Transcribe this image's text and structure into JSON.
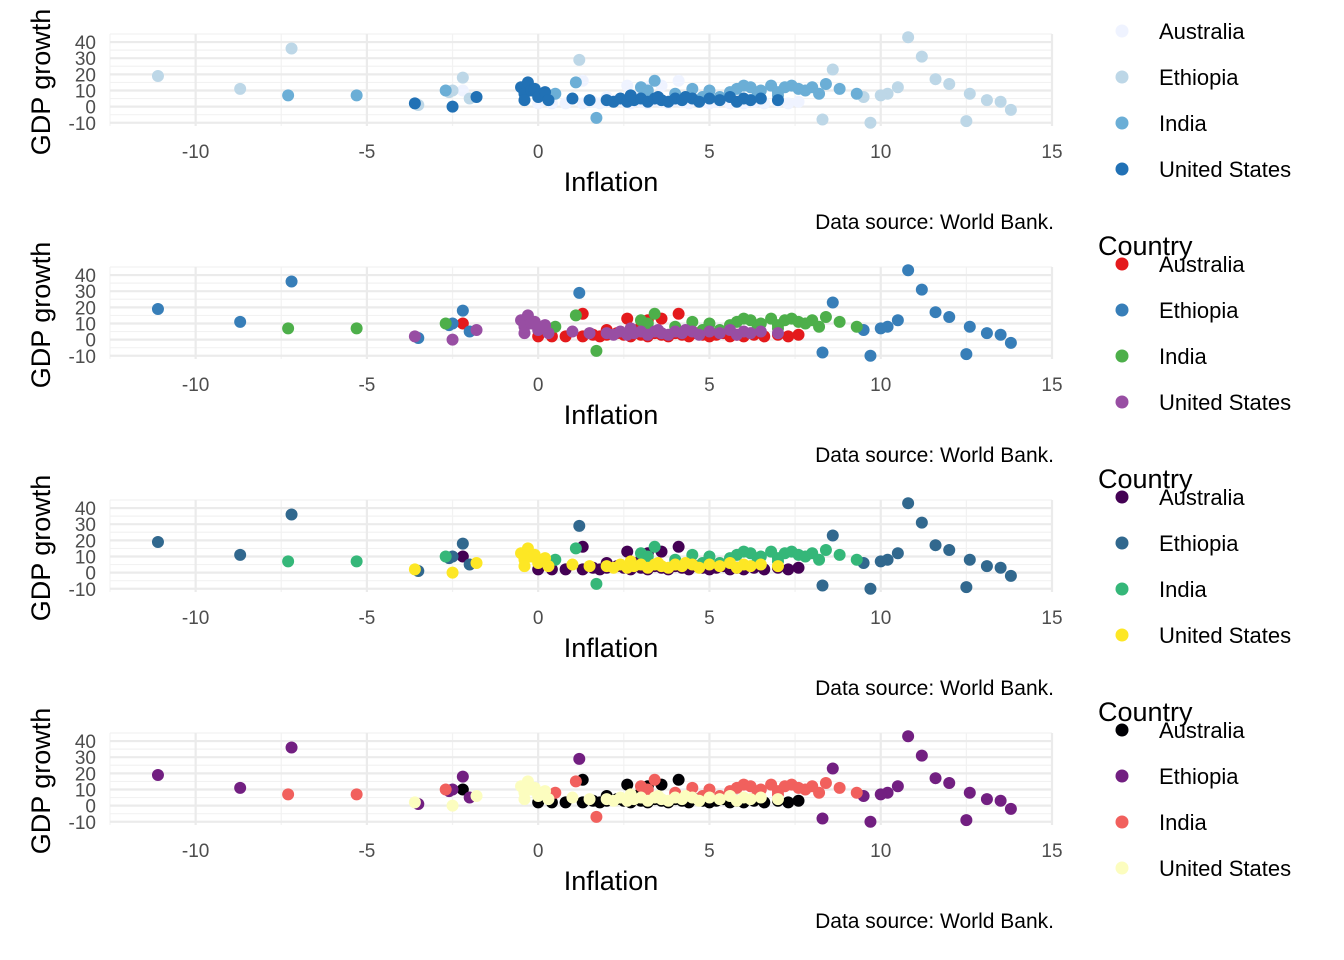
{
  "chart_data": [
    {
      "type": "scatter",
      "palette_name": "Blues",
      "xlabel": "Inflation",
      "ylabel": "GDP growth",
      "caption": "Data source: World Bank.",
      "xlim": [
        -12.5,
        15
      ],
      "ylim": [
        -12,
        45
      ],
      "xticks": [
        -10,
        -5,
        0,
        5,
        10,
        15
      ],
      "yticks": [
        -10,
        0,
        10,
        20,
        30,
        40
      ],
      "grid": true,
      "legend": {
        "title": "",
        "position": "right"
      },
      "series": [
        {
          "name": "Australia",
          "color": "#eff3ff"
        },
        {
          "name": "Ethiopia",
          "color": "#bdd7e7"
        },
        {
          "name": "India",
          "color": "#6baed6"
        },
        {
          "name": "United States",
          "color": "#2171b5"
        }
      ]
    },
    {
      "type": "scatter",
      "palette_name": "Set1",
      "xlabel": "Inflation",
      "ylabel": "GDP growth",
      "caption": "Data source: World Bank.",
      "xlim": [
        -12.5,
        15
      ],
      "ylim": [
        -12,
        45
      ],
      "xticks": [
        -10,
        -5,
        0,
        5,
        10,
        15
      ],
      "yticks": [
        -10,
        0,
        10,
        20,
        30,
        40
      ],
      "grid": true,
      "legend": {
        "title": "Country",
        "position": "right"
      },
      "series": [
        {
          "name": "Australia",
          "color": "#e41a1c"
        },
        {
          "name": "Ethiopia",
          "color": "#377eb8"
        },
        {
          "name": "India",
          "color": "#4daf4a"
        },
        {
          "name": "United States",
          "color": "#984ea3"
        }
      ]
    },
    {
      "type": "scatter",
      "palette_name": "viridis",
      "xlabel": "Inflation",
      "ylabel": "GDP growth",
      "caption": "Data source: World Bank.",
      "xlim": [
        -12.5,
        15
      ],
      "ylim": [
        -12,
        45
      ],
      "xticks": [
        -10,
        -5,
        0,
        5,
        10,
        15
      ],
      "yticks": [
        -10,
        0,
        10,
        20,
        30,
        40
      ],
      "grid": true,
      "legend": {
        "title": "Country",
        "position": "right"
      },
      "series": [
        {
          "name": "Australia",
          "color": "#440154"
        },
        {
          "name": "Ethiopia",
          "color": "#31688e"
        },
        {
          "name": "India",
          "color": "#35b779"
        },
        {
          "name": "United States",
          "color": "#fde725"
        }
      ]
    },
    {
      "type": "scatter",
      "palette_name": "magma",
      "xlabel": "Inflation",
      "ylabel": "GDP growth",
      "caption": "Data source: World Bank.",
      "xlim": [
        -12.5,
        15
      ],
      "ylim": [
        -12,
        45
      ],
      "xticks": [
        -10,
        -5,
        0,
        5,
        10,
        15
      ],
      "yticks": [
        -10,
        0,
        10,
        20,
        30,
        40
      ],
      "grid": true,
      "legend": {
        "title": "Country",
        "position": "right"
      },
      "series": [
        {
          "name": "Australia",
          "color": "#000004"
        },
        {
          "name": "Ethiopia",
          "color": "#721f81"
        },
        {
          "name": "India",
          "color": "#f1605d"
        },
        {
          "name": "United States",
          "color": "#fcfdbf"
        }
      ]
    }
  ],
  "points": {
    "Australia": [
      [
        0,
        2
      ],
      [
        0.4,
        2
      ],
      [
        0.8,
        2
      ],
      [
        1.3,
        2
      ],
      [
        1.6,
        3
      ],
      [
        1.8,
        2
      ],
      [
        2.0,
        3
      ],
      [
        2.3,
        4
      ],
      [
        2.5,
        3
      ],
      [
        2.7,
        2
      ],
      [
        2.9,
        4
      ],
      [
        3.0,
        3
      ],
      [
        3.2,
        2
      ],
      [
        3.4,
        4
      ],
      [
        3.6,
        3
      ],
      [
        3.8,
        2
      ],
      [
        4.0,
        4
      ],
      [
        4.2,
        3
      ],
      [
        4.4,
        2
      ],
      [
        4.6,
        4
      ],
      [
        4.8,
        3
      ],
      [
        5.0,
        2
      ],
      [
        5.2,
        3
      ],
      [
        5.4,
        4
      ],
      [
        5.6,
        2
      ],
      [
        5.8,
        3
      ],
      [
        6.0,
        2
      ],
      [
        6.3,
        3
      ],
      [
        6.6,
        2
      ],
      [
        7.0,
        3
      ],
      [
        7.3,
        2
      ],
      [
        7.6,
        3
      ],
      [
        -2.2,
        10
      ],
      [
        1.3,
        16
      ],
      [
        2.6,
        13
      ],
      [
        3.2,
        12
      ],
      [
        3.6,
        13
      ],
      [
        4.1,
        16
      ],
      [
        3.0,
        8
      ],
      [
        2.0,
        6
      ]
    ],
    "Ethiopia": [
      [
        -11.1,
        19
      ],
      [
        -8.7,
        11
      ],
      [
        -7.2,
        36
      ],
      [
        -3.5,
        1
      ],
      [
        -2.6,
        9
      ],
      [
        -2.2,
        18
      ],
      [
        1.2,
        29
      ],
      [
        8.6,
        23
      ],
      [
        9.5,
        6
      ],
      [
        10.2,
        8
      ],
      [
        10.5,
        12
      ],
      [
        10.8,
        43
      ],
      [
        11.2,
        31
      ],
      [
        11.6,
        17
      ],
      [
        12.0,
        14
      ],
      [
        12.5,
        -9
      ],
      [
        12.6,
        8
      ],
      [
        13.1,
        4
      ],
      [
        13.5,
        3
      ],
      [
        13.8,
        -2
      ],
      [
        8.3,
        -8
      ],
      [
        9.7,
        -10
      ],
      [
        10.0,
        7
      ],
      [
        -2.5,
        10
      ],
      [
        -2.0,
        5
      ]
    ],
    "India": [
      [
        -7.3,
        7
      ],
      [
        -5.3,
        7
      ],
      [
        -2.7,
        10
      ],
      [
        0.5,
        8
      ],
      [
        1.1,
        15
      ],
      [
        1.7,
        -7
      ],
      [
        3.0,
        12
      ],
      [
        3.2,
        10
      ],
      [
        3.4,
        16
      ],
      [
        4.0,
        8
      ],
      [
        4.5,
        11
      ],
      [
        5.0,
        10
      ],
      [
        5.3,
        6
      ],
      [
        5.6,
        9
      ],
      [
        5.8,
        11
      ],
      [
        6.0,
        13
      ],
      [
        6.2,
        12
      ],
      [
        6.5,
        10
      ],
      [
        6.8,
        13
      ],
      [
        7.0,
        9
      ],
      [
        7.2,
        12
      ],
      [
        7.4,
        13
      ],
      [
        7.6,
        11
      ],
      [
        7.8,
        10
      ],
      [
        8.0,
        12
      ],
      [
        8.2,
        8
      ],
      [
        8.4,
        14
      ],
      [
        8.8,
        11
      ],
      [
        9.3,
        8
      ],
      [
        7.0,
        7
      ],
      [
        6.4,
        7
      ],
      [
        4.8,
        6
      ]
    ],
    "United States": [
      [
        -3.6,
        2
      ],
      [
        -2.5,
        0
      ],
      [
        -1.8,
        6
      ],
      [
        -0.5,
        12
      ],
      [
        -0.4,
        8
      ],
      [
        -0.3,
        15
      ],
      [
        -0.2,
        10
      ],
      [
        -0.1,
        11
      ],
      [
        0,
        6
      ],
      [
        0.2,
        9
      ],
      [
        1.0,
        5
      ],
      [
        1.5,
        4
      ],
      [
        2.0,
        4
      ],
      [
        2.2,
        3
      ],
      [
        2.4,
        5
      ],
      [
        2.6,
        3
      ],
      [
        2.8,
        4
      ],
      [
        3.0,
        5
      ],
      [
        3.2,
        3
      ],
      [
        3.4,
        5
      ],
      [
        3.6,
        4
      ],
      [
        3.8,
        3
      ],
      [
        4.0,
        5
      ],
      [
        4.2,
        4
      ],
      [
        4.5,
        5
      ],
      [
        4.7,
        3
      ],
      [
        5.0,
        5
      ],
      [
        5.3,
        4
      ],
      [
        5.6,
        6
      ],
      [
        5.8,
        3
      ],
      [
        6.0,
        5
      ],
      [
        6.2,
        4
      ],
      [
        6.5,
        5
      ],
      [
        7.0,
        4
      ],
      [
        2.7,
        7
      ],
      [
        3.5,
        6
      ],
      [
        4.3,
        6
      ],
      [
        -0.4,
        4
      ],
      [
        0.3,
        4
      ]
    ]
  }
}
